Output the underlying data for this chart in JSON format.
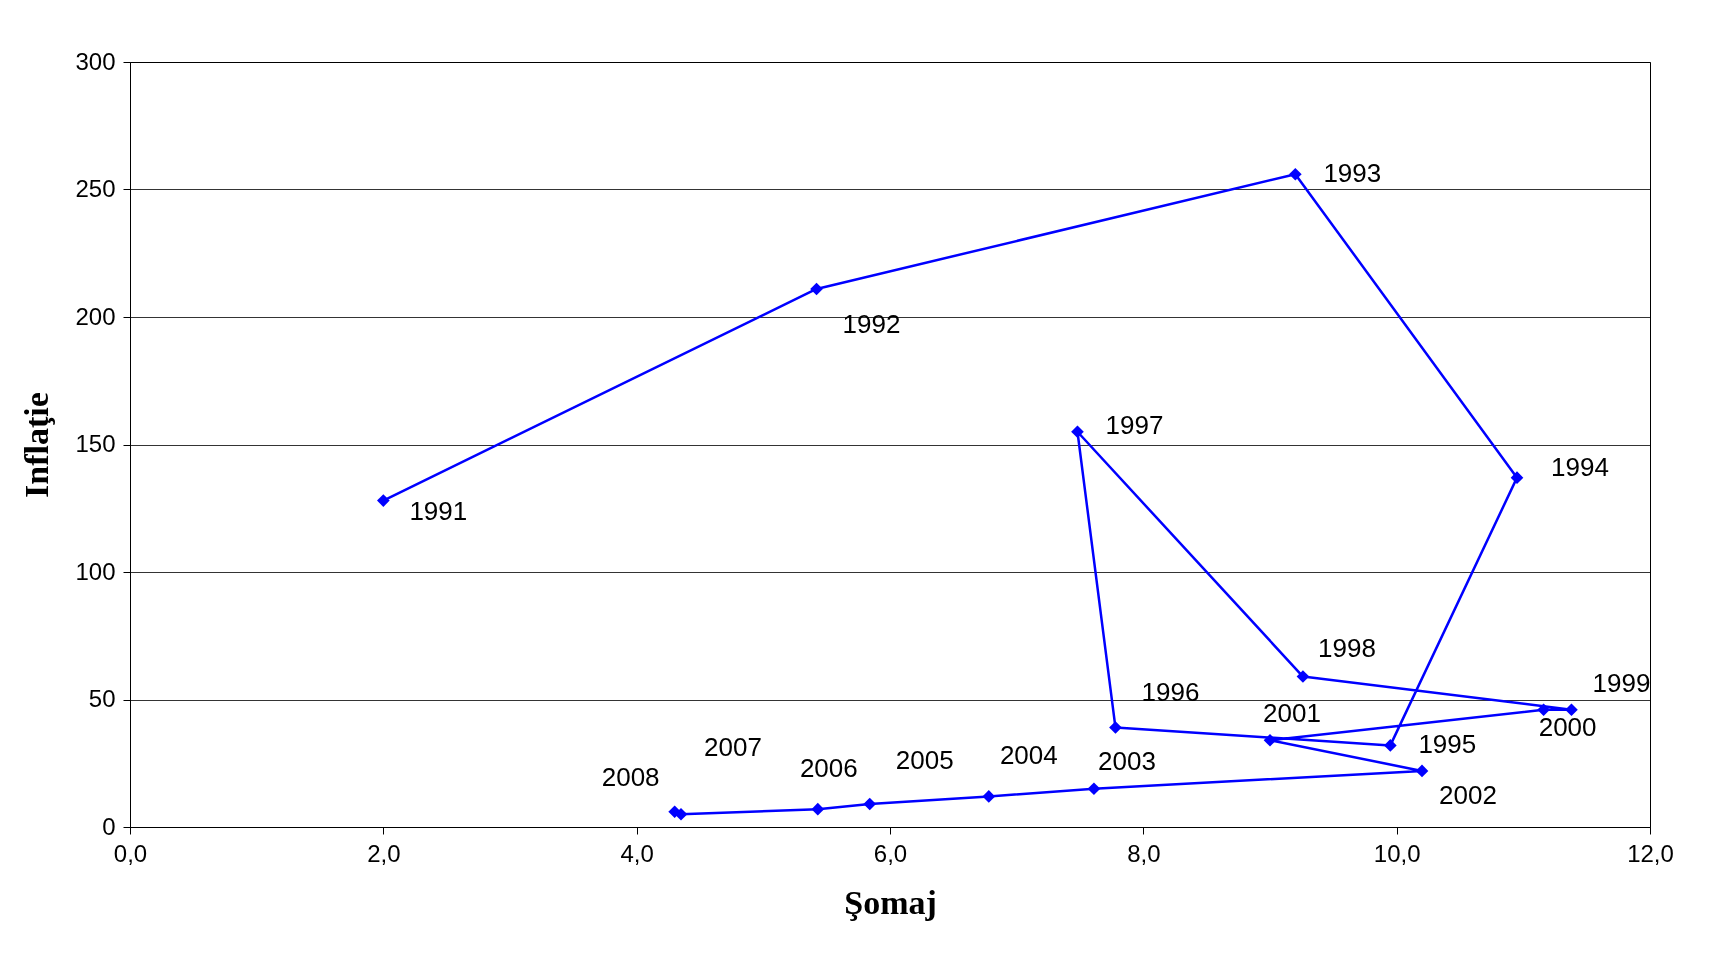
{
  "chart_data": {
    "type": "line",
    "xlabel": "Şomaj",
    "ylabel": "Inflaţie",
    "xlim": [
      0,
      12
    ],
    "xticks": [
      {
        "value": 0,
        "label": "0,0"
      },
      {
        "value": 2,
        "label": "2,0"
      },
      {
        "value": 4,
        "label": "4,0"
      },
      {
        "value": 6,
        "label": "6,0"
      },
      {
        "value": 8,
        "label": "8,0"
      },
      {
        "value": 10,
        "label": "10,0"
      },
      {
        "value": 12,
        "label": "12,0"
      }
    ],
    "ylim": [
      0,
      300
    ],
    "yticks": [
      0,
      50,
      100,
      150,
      200,
      250,
      300
    ],
    "grid": "y",
    "marker": "diamond",
    "line_style": "solid",
    "series": [
      {
        "color": "#0000ff",
        "x": [
          2.0,
          5.42,
          9.2,
          10.95,
          9.95,
          7.78,
          7.48,
          9.26,
          11.38,
          11.16,
          9.0,
          10.2,
          7.61,
          6.78,
          5.84,
          5.43,
          4.35,
          4.3
        ],
        "values": [
          128,
          211,
          256,
          137,
          32,
          39,
          155,
          59,
          46,
          46,
          34,
          22,
          15,
          12,
          9,
          7,
          5,
          6
        ]
      }
    ],
    "annotations": [
      {
        "text": "1991",
        "x": 2.0,
        "y": 128
      },
      {
        "text": "1992",
        "x": 5.42,
        "y": 211
      },
      {
        "text": "1993",
        "x": 9.2,
        "y": 256
      },
      {
        "text": "1994",
        "x": 10.95,
        "y": 137
      },
      {
        "text": "1995",
        "x": 9.95,
        "y": 32
      },
      {
        "text": "1996",
        "x": 7.78,
        "y": 39
      },
      {
        "text": "1997",
        "x": 7.48,
        "y": 155
      },
      {
        "text": "1998",
        "x": 9.26,
        "y": 59
      },
      {
        "text": "1999",
        "x": 11.38,
        "y": 46
      },
      {
        "text": "2000",
        "x": 11.16,
        "y": 46
      },
      {
        "text": "2001",
        "x": 9.0,
        "y": 34
      },
      {
        "text": "2002",
        "x": 10.2,
        "y": 22
      },
      {
        "text": "2003",
        "x": 7.61,
        "y": 15
      },
      {
        "text": "2004",
        "x": 6.78,
        "y": 12
      },
      {
        "text": "2005",
        "x": 5.84,
        "y": 9
      },
      {
        "text": "2006",
        "x": 5.43,
        "y": 7
      },
      {
        "text": "2007",
        "x": 4.35,
        "y": 5
      },
      {
        "text": "2008",
        "x": 4.3,
        "y": 6
      }
    ]
  }
}
